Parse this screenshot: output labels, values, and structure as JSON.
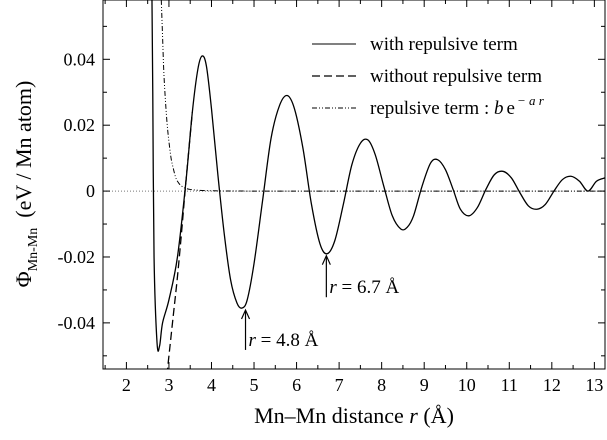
{
  "chart_data": {
    "type": "line",
    "xlabel": {
      "text": "Mn–Mn distance ",
      "var": "r",
      "unit": " (Å)"
    },
    "ylabel": {
      "symbol": "Φ",
      "sub": "Mn-Mn",
      "unit": "(eV / Mn atom)"
    },
    "xlim": [
      1.45,
      13.25
    ],
    "ylim": [
      -0.054,
      0.058
    ],
    "x_ticks": [
      2,
      3,
      4,
      5,
      6,
      7,
      8,
      9,
      10,
      11,
      12,
      13
    ],
    "x_tick_labels": [
      "2",
      "3",
      "4",
      "5",
      "6",
      "7",
      "8",
      "9",
      "10",
      "11",
      "12",
      "13"
    ],
    "y_ticks": [
      -0.04,
      -0.02,
      0,
      0.02,
      0.04
    ],
    "y_tick_labels": [
      "-0.04",
      "-0.02",
      "0",
      "0.02",
      "0.04"
    ],
    "zero_line": true,
    "legend": {
      "placement": "top-right",
      "entries": [
        {
          "label": "with repulsive term",
          "style": "solid"
        },
        {
          "label": "without repulsive term",
          "style": "dashed"
        },
        {
          "label": "repulsive term : ",
          "style": "dashdotdot",
          "math": {
            "b": "b",
            "e": "e",
            "exp": "− a r"
          }
        }
      ]
    },
    "series": [
      {
        "name": "with repulsive term",
        "style": "solid",
        "x": [
          2.6,
          2.62,
          2.65,
          2.72,
          2.78,
          2.85,
          3.0,
          3.2,
          3.4,
          3.55,
          3.68,
          3.78,
          3.88,
          4.0,
          4.15,
          4.3,
          4.45,
          4.6,
          4.72,
          4.84,
          5.0,
          5.2,
          5.4,
          5.6,
          5.78,
          5.95,
          6.15,
          6.35,
          6.55,
          6.72,
          6.9,
          7.1,
          7.3,
          7.5,
          7.68,
          7.85,
          8.05,
          8.25,
          8.45,
          8.6,
          8.75,
          8.95,
          9.15,
          9.32,
          9.5,
          9.68,
          9.85,
          10.05,
          10.25,
          10.45,
          10.65,
          10.85,
          11.05,
          11.25,
          11.45,
          11.65,
          11.85,
          12.05,
          12.25,
          12.45,
          12.65,
          12.85,
          13.05,
          13.25
        ],
        "y": [
          0.06,
          0.03,
          -0.02,
          -0.046,
          -0.047,
          -0.04,
          -0.033,
          -0.02,
          0.003,
          0.024,
          0.037,
          0.041,
          0.038,
          0.025,
          0.005,
          -0.013,
          -0.027,
          -0.034,
          -0.0355,
          -0.033,
          -0.022,
          -0.003,
          0.016,
          0.026,
          0.029,
          0.025,
          0.013,
          -0.004,
          -0.016,
          -0.019,
          -0.015,
          -0.004,
          0.008,
          0.0145,
          0.0155,
          0.011,
          0.0015,
          -0.0075,
          -0.0115,
          -0.011,
          -0.0075,
          0.0015,
          0.0085,
          0.0095,
          0.0065,
          0.0005,
          -0.0055,
          -0.0075,
          -0.005,
          0.0005,
          0.005,
          0.006,
          0.004,
          -0.0005,
          -0.0045,
          -0.0055,
          -0.004,
          0.0,
          0.0035,
          0.0045,
          0.003,
          0.0,
          0.003,
          0.004
        ]
      },
      {
        "name": "without repulsive term",
        "style": "dashed",
        "x": [
          2.95,
          3.0,
          3.1,
          3.2,
          3.3,
          3.4,
          3.55
        ],
        "y": [
          -0.056,
          -0.05,
          -0.038,
          -0.026,
          -0.012,
          0.003,
          0.024
        ]
      },
      {
        "name": "repulsive term : b e^(−a r)",
        "style": "dashdotdot",
        "x": [
          2.82,
          2.85,
          2.88,
          2.92,
          2.96,
          3.0,
          3.05,
          3.1,
          3.15,
          3.2,
          3.3,
          3.5,
          4.0,
          5.0,
          7.0,
          9.0,
          11.0,
          13.25
        ],
        "y": [
          0.058,
          0.047,
          0.036,
          0.027,
          0.02,
          0.015,
          0.01,
          0.007,
          0.0045,
          0.003,
          0.0015,
          0.0005,
          0.0001,
          0.0,
          0.0,
          0.0,
          0.0,
          0.0
        ]
      }
    ],
    "annotations": [
      {
        "var": "r",
        "text": " = 4.8 Å",
        "x": 4.8,
        "y": -0.0355,
        "y_text": -0.047
      },
      {
        "var": "r",
        "text": " = 6.7 Å",
        "x": 6.7,
        "y": -0.019,
        "y_text": -0.031
      }
    ]
  }
}
